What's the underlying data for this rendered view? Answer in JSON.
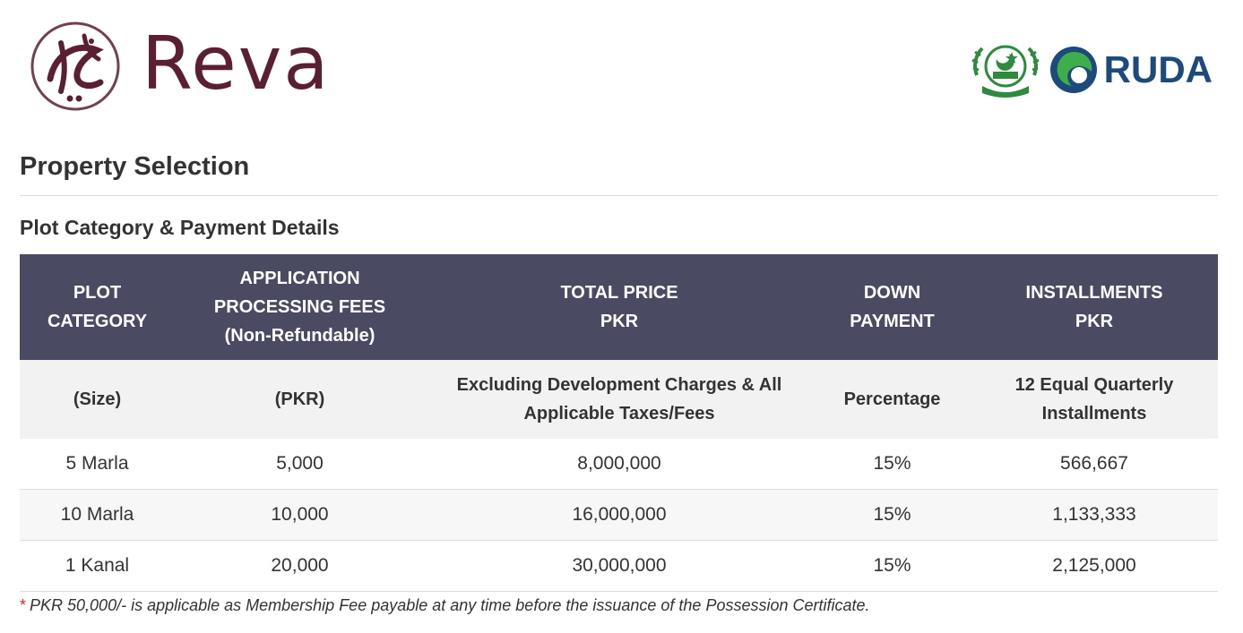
{
  "brand": {
    "name": "Reva",
    "mark_color": "#5a1f33"
  },
  "partners": {
    "seal": "punjab-govt-seal-icon",
    "ruda_name": "RUDA",
    "ruda_color": "#1c4a7a",
    "ruda_accent": "#3dae49"
  },
  "page_title": "Property Selection",
  "section_title": "Plot Category & Payment Details",
  "table": {
    "header_bg": "#4b4a63",
    "headers": [
      {
        "line1": "PLOT",
        "line2": "CATEGORY",
        "line3": ""
      },
      {
        "line1": "APPLICATION",
        "line2": "PROCESSING FEES",
        "line3": "(Non-Refundable)"
      },
      {
        "line1": "TOTAL PRICE",
        "line2": "PKR",
        "line3": ""
      },
      {
        "line1": "DOWN",
        "line2": "PAYMENT",
        "line3": ""
      },
      {
        "line1": "INSTALLMENTS",
        "line2": "PKR",
        "line3": ""
      }
    ],
    "subheaders": [
      {
        "line1": "(Size)",
        "line2": ""
      },
      {
        "line1": "(PKR)",
        "line2": ""
      },
      {
        "line1": "Excluding Development Charges & All",
        "line2": "Applicable Taxes/Fees"
      },
      {
        "line1": "Percentage",
        "line2": ""
      },
      {
        "line1": "12 Equal Quarterly",
        "line2": "Installments"
      }
    ],
    "rows": [
      {
        "category": "5 Marla",
        "fees": "5,000",
        "total_price": "8,000,000",
        "down_payment": "15%",
        "installments": "566,667"
      },
      {
        "category": "10 Marla",
        "fees": "10,000",
        "total_price": "16,000,000",
        "down_payment": "15%",
        "installments": "1,133,333"
      },
      {
        "category": "1 Kanal",
        "fees": "20,000",
        "total_price": "30,000,000",
        "down_payment": "15%",
        "installments": "2,125,000"
      }
    ]
  },
  "footnote": {
    "marker": "*",
    "text": "PKR 50,000/- is applicable as Membership Fee payable at any time before the issuance of the Possession Certificate."
  }
}
